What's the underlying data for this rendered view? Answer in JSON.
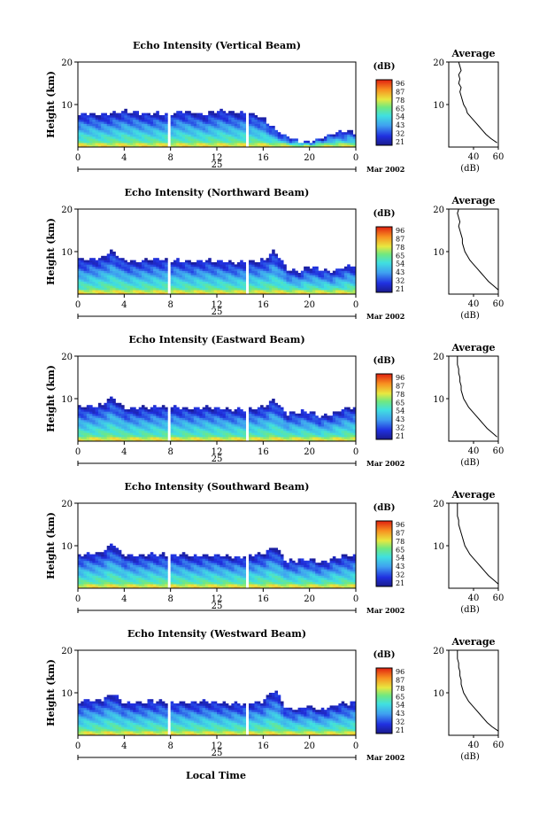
{
  "figure": {
    "date_day": "25",
    "date_label": "Mar 2002",
    "xlabel": "Local Time",
    "height_label": "Height (km)",
    "colorbar_unit": "(dB)",
    "colorbar_ticks": [
      "96",
      "87",
      "78",
      "65",
      "54",
      "43",
      "32",
      "21"
    ],
    "average_title": "Average",
    "average_xlabel": "(dB)"
  },
  "chart_data": [
    {
      "type": "heatmap",
      "title": "Echo Intensity (Vertical Beam)",
      "ylabel": "Height (km)",
      "x_ticks": [
        "0",
        "4",
        "8",
        "12",
        "16",
        "20",
        "0"
      ],
      "y_ticks": [
        "20",
        "10"
      ],
      "xlim": [
        0,
        24
      ],
      "ylim": [
        0,
        20
      ],
      "echo_top_km": [
        7.6,
        8.1,
        7.5,
        7.9,
        8.6,
        8.2,
        7.8,
        7.9,
        8.0,
        8.5,
        8.2,
        7.6,
        8.6,
        8.3,
        8.0,
        7.9,
        7.0,
        4.2,
        2.6,
        1.4,
        1.2,
        2.0,
        3.2,
        3.6
      ],
      "data_gaps_hours": [
        [
          7.8,
          8.1
        ],
        [
          14.4,
          14.7
        ]
      ],
      "average_profile": {
        "title": "Average",
        "xlabel": "(dB)",
        "xlim": [
          20,
          60
        ],
        "x_ticks": [
          "40",
          "60"
        ],
        "ylim": [
          0,
          20
        ],
        "y_ticks": [
          "20",
          "10"
        ],
        "height_km": [
          1,
          2,
          3,
          4,
          5,
          6,
          7,
          8,
          9,
          10,
          11,
          12,
          13,
          14,
          15,
          16,
          17,
          18,
          19,
          20
        ],
        "db": [
          59,
          54,
          50,
          47,
          44,
          41,
          38,
          35,
          34,
          32,
          31,
          30,
          29,
          30,
          28,
          29,
          28,
          30,
          29,
          28
        ]
      }
    },
    {
      "type": "heatmap",
      "title": "Echo Intensity (Northward Beam)",
      "ylabel": "Height (km)",
      "x_ticks": [
        "0",
        "4",
        "8",
        "12",
        "16",
        "20",
        "0"
      ],
      "y_ticks": [
        "20",
        "10"
      ],
      "xlim": [
        0,
        24
      ],
      "ylim": [
        0,
        20
      ],
      "echo_top_km": [
        8.0,
        8.3,
        8.4,
        10.3,
        7.9,
        7.8,
        8.1,
        8.2,
        7.9,
        8.0,
        7.6,
        8.1,
        7.8,
        7.6,
        7.4,
        7.8,
        7.9,
        10.2,
        6.0,
        5.2,
        6.5,
        5.9,
        5.2,
        6.6
      ],
      "data_gaps_hours": [
        [
          7.8,
          8.1
        ],
        [
          14.4,
          14.7
        ]
      ],
      "average_profile": {
        "title": "Average",
        "xlabel": "(dB)",
        "xlim": [
          20,
          60
        ],
        "x_ticks": [
          "40",
          "60"
        ],
        "ylim": [
          0,
          20
        ],
        "y_ticks": [
          "20",
          "10"
        ],
        "height_km": [
          1,
          2,
          3,
          4,
          5,
          6,
          7,
          8,
          9,
          10,
          11,
          12,
          13,
          14,
          15,
          16,
          17,
          18,
          19,
          20
        ],
        "db": [
          60,
          56,
          52,
          49,
          46,
          43,
          40,
          37,
          35,
          33,
          32,
          31,
          31,
          30,
          29,
          28,
          29,
          28,
          27,
          28
        ]
      }
    },
    {
      "type": "heatmap",
      "title": "Echo Intensity (Eastward Beam)",
      "ylabel": "Height (km)",
      "x_ticks": [
        "0",
        "4",
        "8",
        "12",
        "16",
        "20",
        "0"
      ],
      "y_ticks": [
        "20",
        "10"
      ],
      "xlim": [
        0,
        24
      ],
      "ylim": [
        0,
        20
      ],
      "echo_top_km": [
        8.0,
        8.2,
        8.4,
        10.6,
        7.7,
        7.7,
        8.0,
        8.1,
        7.8,
        8.0,
        7.6,
        8.0,
        7.8,
        7.5,
        7.4,
        7.8,
        8.0,
        10.0,
        6.4,
        6.9,
        7.0,
        5.8,
        6.4,
        7.8
      ],
      "data_gaps_hours": [
        [
          7.8,
          8.1
        ],
        [
          14.4,
          14.7
        ]
      ],
      "average_profile": {
        "title": "Average",
        "xlabel": "(dB)",
        "xlim": [
          20,
          60
        ],
        "x_ticks": [
          "40",
          "60"
        ],
        "ylim": [
          0,
          20
        ],
        "y_ticks": [
          "20",
          "10"
        ],
        "height_km": [
          1,
          2,
          3,
          4,
          5,
          6,
          7,
          8,
          9,
          10,
          11,
          12,
          13,
          14,
          15,
          16,
          17,
          18,
          19,
          20
        ],
        "db": [
          59,
          55,
          51,
          48,
          45,
          42,
          39,
          36,
          34,
          32,
          31,
          30,
          30,
          29,
          29,
          28,
          28,
          27,
          27,
          27
        ]
      }
    },
    {
      "type": "heatmap",
      "title": "Echo Intensity (Southward Beam)",
      "ylabel": "Height (km)",
      "x_ticks": [
        "0",
        "4",
        "8",
        "12",
        "16",
        "20",
        "0"
      ],
      "y_ticks": [
        "20",
        "10"
      ],
      "xlim": [
        0,
        24
      ],
      "ylim": [
        0,
        20
      ],
      "echo_top_km": [
        8.0,
        8.2,
        8.3,
        10.6,
        7.7,
        7.6,
        8.0,
        8.0,
        7.8,
        8.0,
        7.6,
        8.0,
        7.8,
        7.5,
        7.4,
        7.8,
        8.0,
        10.0,
        6.3,
        6.6,
        7.0,
        5.8,
        7.0,
        7.6
      ],
      "data_gaps_hours": [
        [
          7.8,
          8.1
        ],
        [
          14.4,
          14.7
        ]
      ],
      "average_profile": {
        "title": "Average",
        "xlabel": "(dB)",
        "xlim": [
          20,
          60
        ],
        "x_ticks": [
          "40",
          "60"
        ],
        "ylim": [
          0,
          20
        ],
        "y_ticks": [
          "20",
          "10"
        ],
        "height_km": [
          1,
          2,
          3,
          4,
          5,
          6,
          7,
          8,
          9,
          10,
          11,
          12,
          13,
          14,
          15,
          16,
          17,
          18,
          19,
          20
        ],
        "db": [
          60,
          56,
          52,
          49,
          46,
          43,
          40,
          37,
          35,
          33,
          32,
          31,
          30,
          29,
          28,
          28,
          27,
          27,
          27,
          27
        ]
      }
    },
    {
      "type": "heatmap",
      "title": "Echo Intensity (Westward Beam)",
      "ylabel": "Height (km)",
      "x_ticks": [
        "0",
        "4",
        "8",
        "12",
        "16",
        "20",
        "0"
      ],
      "y_ticks": [
        "20",
        "10"
      ],
      "xlim": [
        0,
        24
      ],
      "ylim": [
        0,
        20
      ],
      "echo_top_km": [
        8.0,
        8.2,
        8.4,
        10.0,
        7.7,
        7.7,
        8.0,
        8.1,
        7.8,
        8.0,
        7.7,
        8.0,
        7.8,
        7.5,
        7.4,
        7.8,
        8.0,
        11.0,
        6.3,
        6.2,
        7.0,
        5.8,
        7.0,
        7.6
      ],
      "data_gaps_hours": [
        [
          7.8,
          8.1
        ],
        [
          14.4,
          14.7
        ]
      ],
      "average_profile": {
        "title": "Average",
        "xlabel": "(dB)",
        "xlim": [
          20,
          60
        ],
        "x_ticks": [
          "40",
          "60"
        ],
        "ylim": [
          0,
          20
        ],
        "y_ticks": [
          "20",
          "10"
        ],
        "height_km": [
          1,
          2,
          3,
          4,
          5,
          6,
          7,
          8,
          9,
          10,
          11,
          12,
          13,
          14,
          15,
          16,
          17,
          18,
          19,
          20
        ],
        "db": [
          60,
          55,
          51,
          48,
          45,
          42,
          39,
          36,
          34,
          32,
          31,
          30,
          30,
          29,
          29,
          28,
          28,
          27,
          27,
          27
        ]
      }
    }
  ]
}
